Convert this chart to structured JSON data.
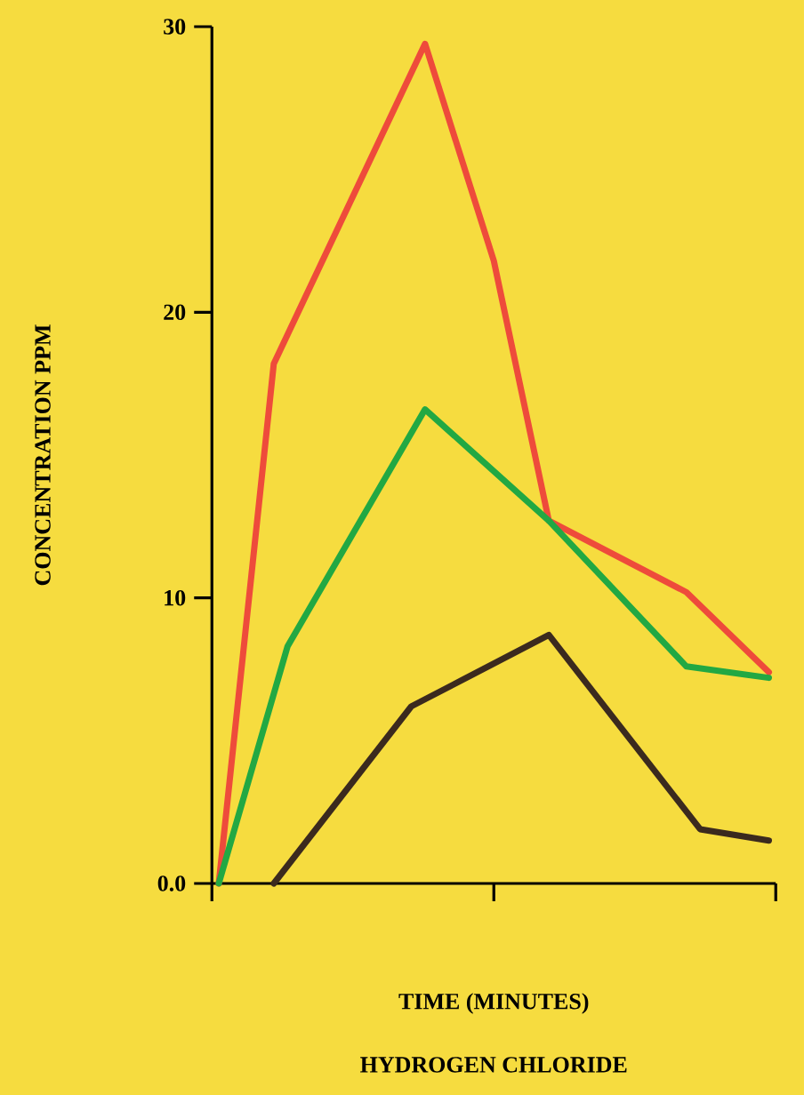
{
  "chart_data": {
    "type": "line",
    "title": "HYDROGEN CHLORIDE",
    "xlabel": "TIME (MINUTES)",
    "ylabel": "CONCENTRATION PPM",
    "categories": [
      null,
      null,
      null,
      null,
      null,
      null,
      null,
      null,
      null,
      null,
      null,
      null,
      null,
      null,
      null,
      null,
      null,
      null,
      null,
      null,
      null,
      null,
      null,
      null,
      null,
      null,
      null,
      null,
      null,
      null,
      null,
      null,
      null,
      null,
      null,
      null,
      null,
      null,
      null,
      null,
      null
    ],
    "ylim": [
      0,
      30
    ],
    "yticks": [
      {
        "value": 0,
        "label": "0.0"
      },
      10,
      20,
      30
    ],
    "grid": false,
    "legend": false,
    "marker": "none",
    "line_style": "solid",
    "series": [
      {
        "color": "#ee4b3b",
        "values": [
          0,
          null,
          null,
          null,
          18.2,
          null,
          null,
          null,
          null,
          null,
          null,
          null,
          null,
          null,
          null,
          29.4,
          null,
          null,
          null,
          null,
          21.8,
          null,
          null,
          null,
          12.7,
          null,
          null,
          null,
          null,
          null,
          null,
          null,
          null,
          null,
          10.2,
          null,
          null,
          null,
          null,
          null,
          7.4
        ]
      },
      {
        "color": "#22a843",
        "values": [
          0,
          null,
          null,
          null,
          null,
          8.3,
          null,
          null,
          null,
          null,
          null,
          null,
          null,
          null,
          null,
          16.6,
          null,
          null,
          null,
          null,
          null,
          null,
          null,
          null,
          12.7,
          null,
          null,
          null,
          null,
          null,
          null,
          null,
          null,
          null,
          7.6,
          null,
          null,
          null,
          null,
          null,
          7.2
        ]
      },
      {
        "color": "#3b2a1e",
        "values": [
          null,
          null,
          null,
          null,
          0,
          null,
          null,
          null,
          null,
          null,
          null,
          null,
          null,
          null,
          6.2,
          null,
          null,
          null,
          null,
          null,
          null,
          null,
          null,
          null,
          8.7,
          null,
          null,
          null,
          null,
          null,
          null,
          null,
          null,
          null,
          null,
          1.9,
          null,
          null,
          null,
          null,
          1.5
        ]
      }
    ]
  }
}
